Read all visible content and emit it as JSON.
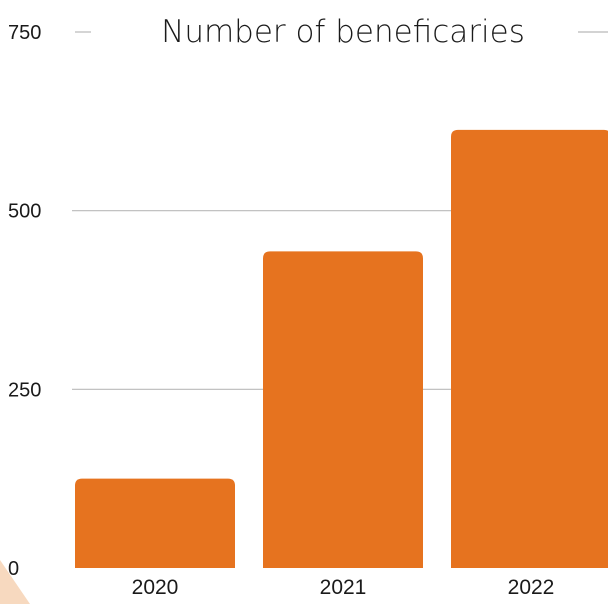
{
  "chart_data": {
    "type": "bar",
    "title": "Number of beneficaries",
    "categories": [
      "2020",
      "2021",
      "2022"
    ],
    "values": [
      125,
      443,
      613
    ],
    "ylim": [
      0,
      750
    ],
    "yticks": [
      0,
      250,
      500,
      750
    ],
    "ytick_labels": [
      "0",
      "250",
      "500",
      "750"
    ],
    "grid": true,
    "xlabel": "",
    "ylabel": ""
  },
  "colors": {
    "bar": "#e6731f",
    "grid": "#b9b9b9",
    "decoration": "#f7d9bf"
  }
}
